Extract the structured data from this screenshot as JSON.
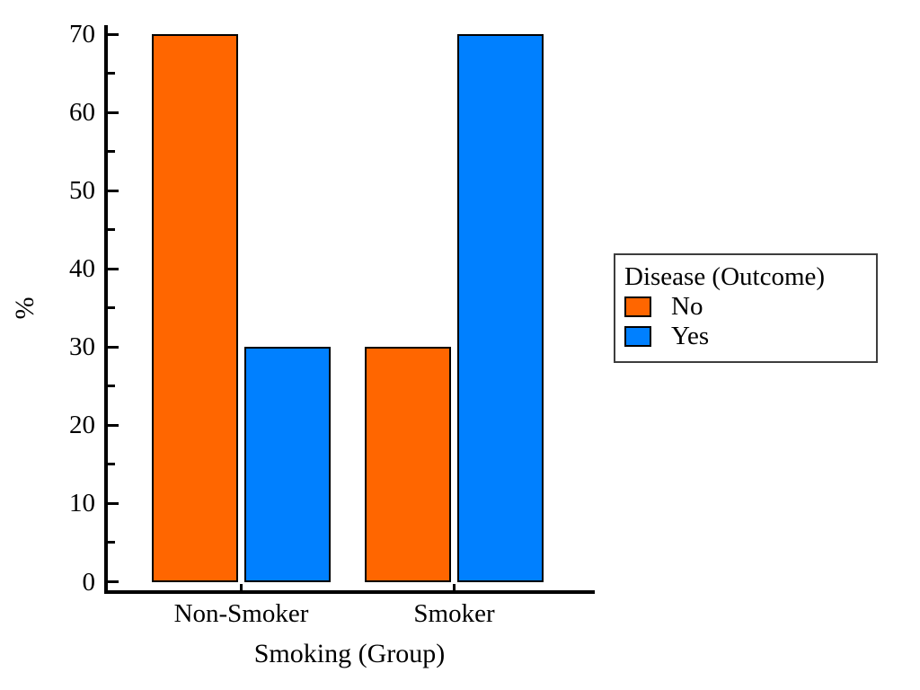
{
  "chart_data": {
    "type": "bar",
    "title": "",
    "categories": [
      "Non-Smoker",
      "Smoker"
    ],
    "series": [
      {
        "name": "No",
        "color": "#FF6600",
        "values": [
          70,
          30
        ]
      },
      {
        "name": "Yes",
        "color": "#0080FF",
        "values": [
          30,
          70
        ]
      }
    ],
    "xlabel": "Smoking (Group)",
    "ylabel": "%",
    "ylim": [
      0,
      70
    ],
    "yticks_major": [
      0,
      10,
      20,
      30,
      40,
      50,
      60,
      70
    ],
    "yticks_minor": [
      5,
      15,
      25,
      35,
      45,
      55,
      65
    ],
    "grid": false,
    "legend": {
      "title": "Disease (Outcome)",
      "position": "right"
    }
  },
  "colors": {
    "background": "#ffffff",
    "text": "#000000",
    "axis": "#000000",
    "bar_border": "#000000",
    "legend_border": "#3d3d3d"
  }
}
